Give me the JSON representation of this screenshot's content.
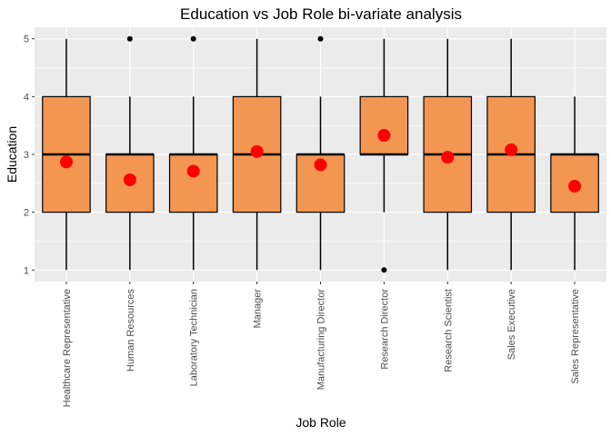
{
  "chart_data": {
    "type": "box",
    "title": "Education vs Job Role bi-variate analysis",
    "xlabel": "Job Role",
    "ylabel": "Education",
    "ylim": [
      0.8,
      5.2
    ],
    "yticks": [
      1,
      2,
      3,
      4,
      5
    ],
    "grid": true,
    "legend": "none",
    "colors": {
      "panel_background": "#ebebeb",
      "grid": "#ffffff",
      "box_fill": "#f29651",
      "box_stroke": "#000000",
      "mean_point": "#ff0000",
      "outlier": "#000000"
    },
    "categories": [
      "Healthcare Representative",
      "Human Resources",
      "Laboratory Technician",
      "Manager",
      "Manufacturing Director",
      "Research Director",
      "Research Scientist",
      "Sales Executive",
      "Sales Representative"
    ],
    "boxes": [
      {
        "min": 1,
        "q1": 2,
        "median": 3,
        "q3": 4,
        "max": 5,
        "mean": 2.87,
        "outliers": []
      },
      {
        "min": 1,
        "q1": 2,
        "median": 3,
        "q3": 3,
        "max": 4,
        "mean": 2.56,
        "outliers": [
          5
        ]
      },
      {
        "min": 1,
        "q1": 2,
        "median": 3,
        "q3": 3,
        "max": 4,
        "mean": 2.71,
        "outliers": [
          5
        ]
      },
      {
        "min": 1,
        "q1": 2,
        "median": 3,
        "q3": 4,
        "max": 5,
        "mean": 3.05,
        "outliers": []
      },
      {
        "min": 1,
        "q1": 2,
        "median": 3,
        "q3": 3,
        "max": 4,
        "mean": 2.82,
        "outliers": [
          5
        ]
      },
      {
        "min": 2,
        "q1": 3,
        "median": 3,
        "q3": 4,
        "max": 5,
        "mean": 3.33,
        "outliers": [
          1
        ]
      },
      {
        "min": 1,
        "q1": 2,
        "median": 3,
        "q3": 4,
        "max": 5,
        "mean": 2.95,
        "outliers": []
      },
      {
        "min": 1,
        "q1": 2,
        "median": 3,
        "q3": 4,
        "max": 5,
        "mean": 3.08,
        "outliers": []
      },
      {
        "min": 1,
        "q1": 2,
        "median": 3,
        "q3": 3,
        "max": 4,
        "mean": 2.45,
        "outliers": []
      }
    ]
  }
}
